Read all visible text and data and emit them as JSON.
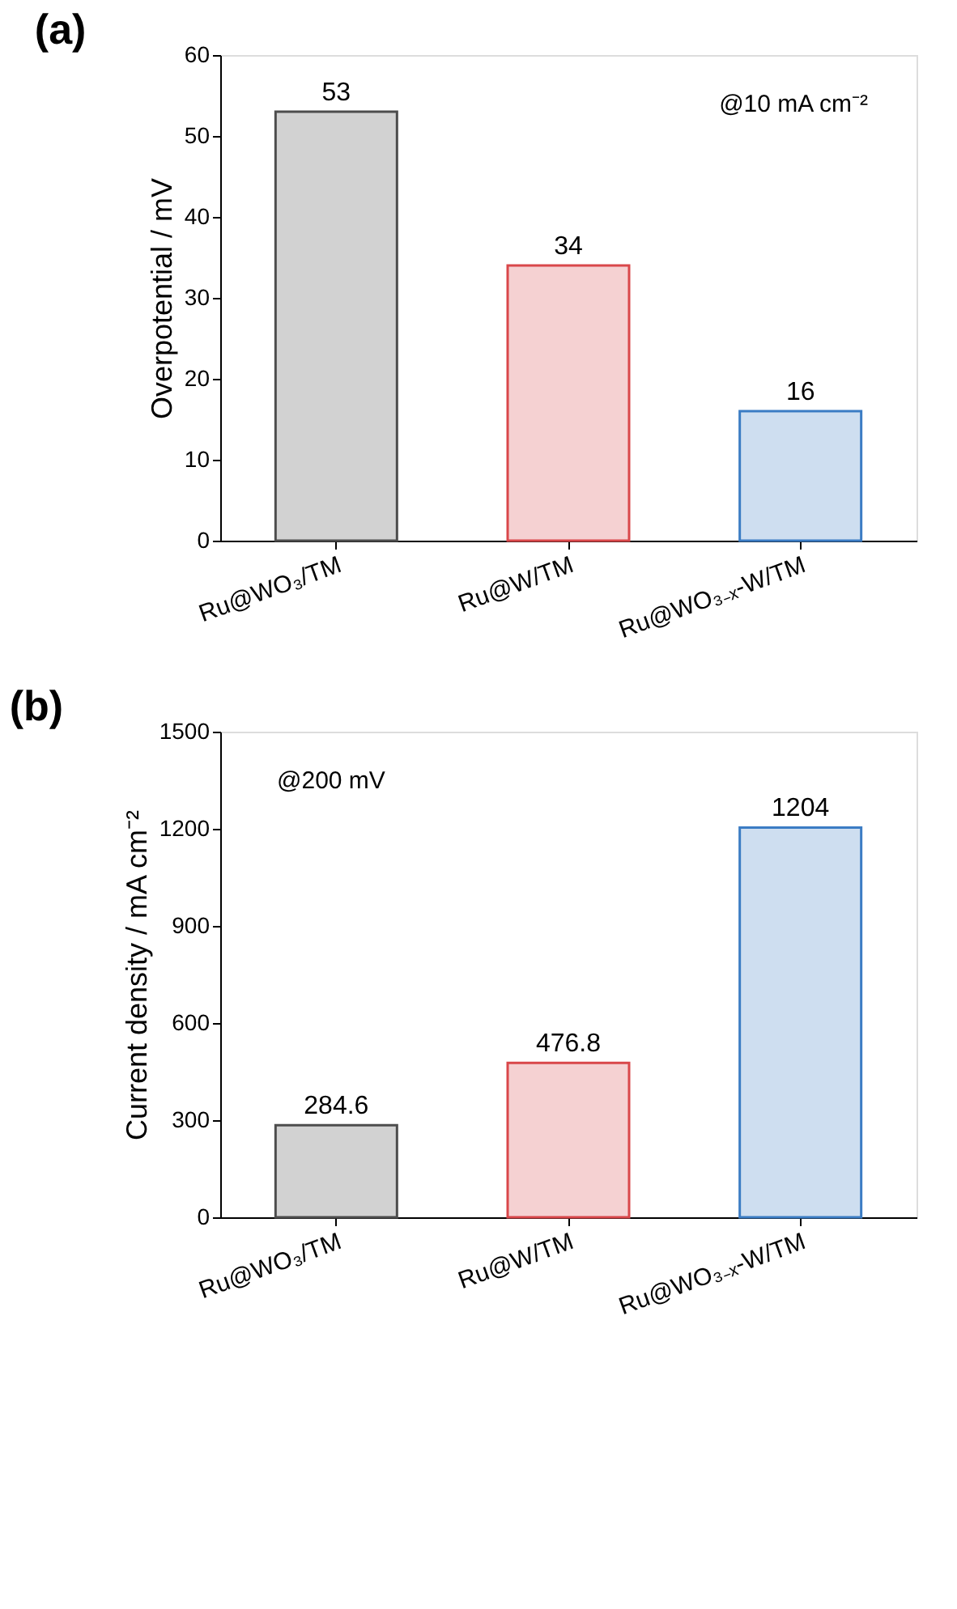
{
  "chart_data": [
    {
      "type": "bar",
      "title": "(a)",
      "ylabel": "Overpotential / mV",
      "categories": [
        "Ru@WO₃/TM",
        "Ru@W/TM",
        "Ru@WO₃₋ₓ-W/TM"
      ],
      "values": [
        53,
        34,
        16
      ],
      "colors": [
        "#4d4d4d",
        "#d9474a",
        "#3b7cc4"
      ],
      "ylim": [
        0,
        60
      ],
      "yticks": [
        0,
        10,
        20,
        30,
        40,
        50,
        60
      ],
      "data_labels": true,
      "annotations": [
        "@10 mA cm⁻²"
      ],
      "grid": false,
      "legend": false
    },
    {
      "type": "bar",
      "title": "(b)",
      "ylabel": "Current density / mA cm⁻²",
      "categories": [
        "Ru@WO₃/TM",
        "Ru@W/TM",
        "Ru@WO₃₋ₓ-W/TM"
      ],
      "values": [
        284.6,
        476.8,
        1204
      ],
      "colors": [
        "#4d4d4d",
        "#d9474a",
        "#3b7cc4"
      ],
      "ylim": [
        0,
        1500
      ],
      "yticks": [
        0,
        300,
        600,
        900,
        1200,
        1500
      ],
      "data_labels": true,
      "annotations": [
        "@200 mV"
      ],
      "grid": false,
      "legend": false
    }
  ]
}
